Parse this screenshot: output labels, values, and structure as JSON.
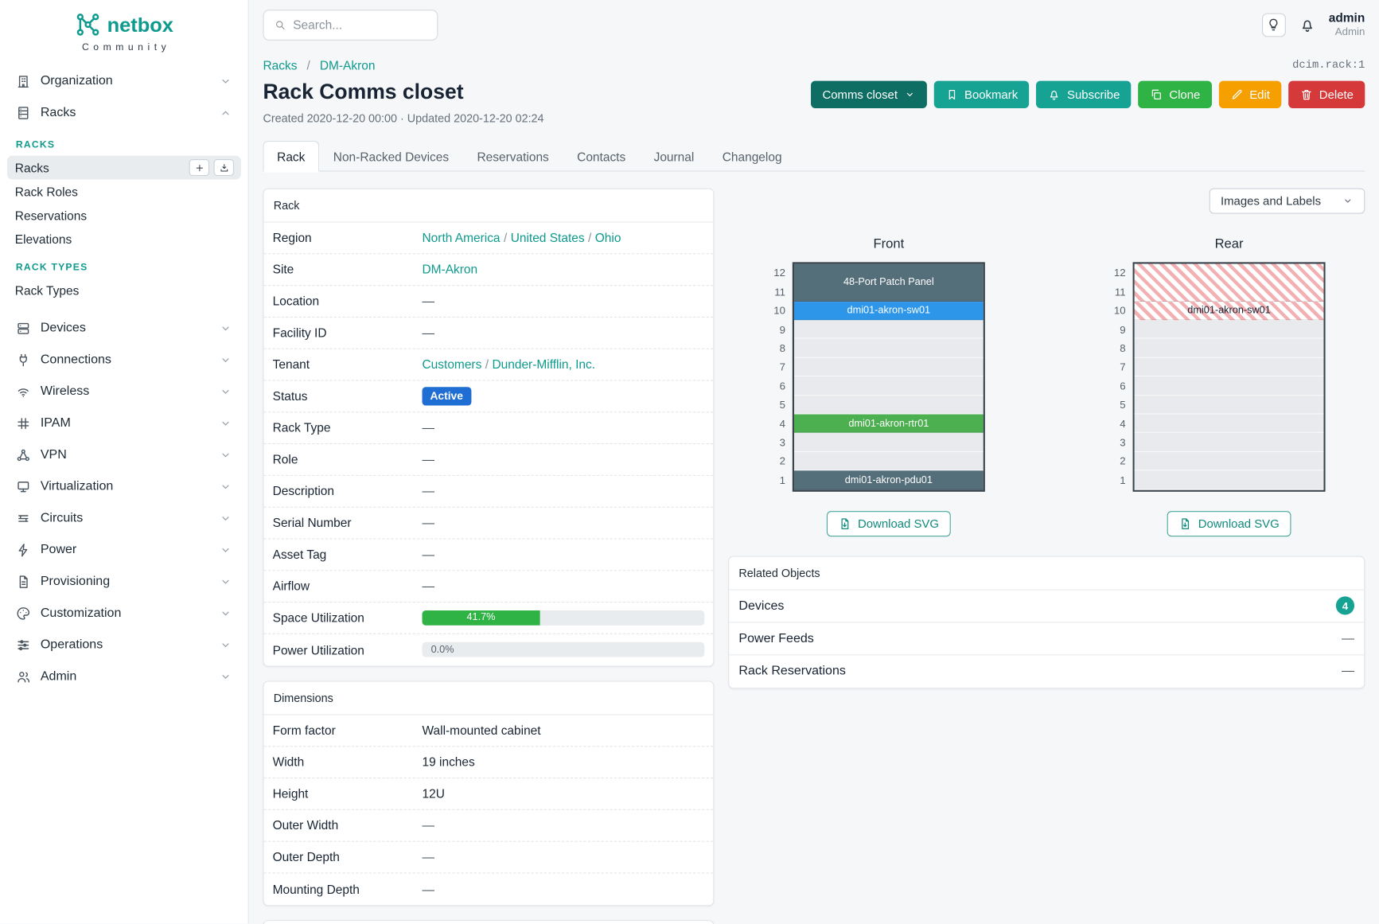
{
  "brand": {
    "name": "netbox",
    "subtitle": "Community"
  },
  "topbar": {
    "search_placeholder": "Search...",
    "icons": [
      "lightbulb",
      "bell"
    ],
    "user": {
      "name": "admin",
      "role": "Admin"
    }
  },
  "sidebar": {
    "items": [
      {
        "label": "Organization",
        "icon": "building",
        "chevron": "down"
      },
      {
        "label": "Racks",
        "icon": "rack",
        "chevron": "up",
        "expanded": true
      },
      {
        "label": "Devices",
        "icon": "devices",
        "chevron": "down"
      },
      {
        "label": "Connections",
        "icon": "connections",
        "chevron": "down"
      },
      {
        "label": "Wireless",
        "icon": "wireless",
        "chevron": "down"
      },
      {
        "label": "IPAM",
        "icon": "ipam",
        "chevron": "down"
      },
      {
        "label": "VPN",
        "icon": "vpn",
        "chevron": "down"
      },
      {
        "label": "Virtualization",
        "icon": "virtualization",
        "chevron": "down"
      },
      {
        "label": "Circuits",
        "icon": "circuits",
        "chevron": "down"
      },
      {
        "label": "Power",
        "icon": "power",
        "chevron": "down"
      },
      {
        "label": "Provisioning",
        "icon": "provisioning",
        "chevron": "down"
      },
      {
        "label": "Customization",
        "icon": "customization",
        "chevron": "down"
      },
      {
        "label": "Operations",
        "icon": "operations",
        "chevron": "down"
      },
      {
        "label": "Admin",
        "icon": "admin",
        "chevron": "down"
      }
    ],
    "racks_groups": [
      {
        "header": "RACKS",
        "links": [
          {
            "label": "Racks",
            "active": true,
            "buttons": [
              "plus",
              "import"
            ]
          },
          {
            "label": "Rack Roles"
          },
          {
            "label": "Reservations"
          },
          {
            "label": "Elevations"
          }
        ]
      },
      {
        "header": "RACK TYPES",
        "links": [
          {
            "label": "Rack Types"
          }
        ]
      }
    ]
  },
  "breadcrumb": {
    "items": [
      "Racks",
      "DM-Akron"
    ]
  },
  "page": {
    "title": "Rack Comms closet",
    "meta": "Created 2020-12-20 00:00 · Updated 2020-12-20 02:24",
    "object_id": "dcim.rack:1"
  },
  "actions": [
    {
      "label": "Comms closet",
      "color": "#0f6e63",
      "caret": true
    },
    {
      "label": "Bookmark",
      "color": "#17a394",
      "icon": "bookmark"
    },
    {
      "label": "Subscribe",
      "color": "#17a394",
      "icon": "bell"
    },
    {
      "label": "Clone",
      "color": "#2fb344",
      "icon": "copy"
    },
    {
      "label": "Edit",
      "color": "#f59f00",
      "icon": "pencil"
    },
    {
      "label": "Delete",
      "color": "#d63939",
      "icon": "trash"
    }
  ],
  "tabs": [
    {
      "label": "Rack",
      "active": true
    },
    {
      "label": "Non-Racked Devices"
    },
    {
      "label": "Reservations"
    },
    {
      "label": "Contacts"
    },
    {
      "label": "Journal"
    },
    {
      "label": "Changelog"
    }
  ],
  "rack_card": {
    "title": "Rack",
    "rows": [
      {
        "label": "Region",
        "type": "links",
        "parts": [
          "North America",
          "United States",
          "Ohio"
        ]
      },
      {
        "label": "Site",
        "type": "links",
        "parts": [
          "DM-Akron"
        ]
      },
      {
        "label": "Location",
        "value": "—"
      },
      {
        "label": "Facility ID",
        "value": "—"
      },
      {
        "label": "Tenant",
        "type": "links",
        "parts": [
          "Customers",
          "Dunder-Mifflin, Inc."
        ]
      },
      {
        "label": "Status",
        "type": "badge",
        "value": "Active",
        "color": "#1f6ed4"
      },
      {
        "label": "Rack Type",
        "value": "—"
      },
      {
        "label": "Role",
        "value": "—"
      },
      {
        "label": "Description",
        "value": "—"
      },
      {
        "label": "Serial Number",
        "value": "—"
      },
      {
        "label": "Asset Tag",
        "value": "—"
      },
      {
        "label": "Airflow",
        "value": "—"
      },
      {
        "label": "Space Utilization",
        "type": "progress",
        "percent": 41.7,
        "text": "41.7%"
      },
      {
        "label": "Power Utilization",
        "type": "progress",
        "percent": 0,
        "text": "0.0%"
      }
    ]
  },
  "dimensions_card": {
    "title": "Dimensions",
    "rows": [
      {
        "label": "Form factor",
        "value": "Wall-mounted cabinet"
      },
      {
        "label": "Width",
        "value": "19 inches"
      },
      {
        "label": "Height",
        "value": "12U"
      },
      {
        "label": "Outer Width",
        "value": "—"
      },
      {
        "label": "Outer Depth",
        "value": "—"
      },
      {
        "label": "Mounting Depth",
        "value": "—"
      }
    ]
  },
  "elevations": {
    "toggle_label": "Images and Labels",
    "download_label": "Download SVG",
    "unit_count": 12,
    "colors": {
      "dark": "#546e7a",
      "blue": "#2d96e8",
      "green": "#4caf50"
    },
    "views": [
      {
        "title": "Front",
        "blocks": [
          {
            "type": "device",
            "style": "dark",
            "span": 2,
            "label": "48-Port Patch Panel"
          },
          {
            "type": "device",
            "style": "blue",
            "span": 1,
            "label": "dmi01-akron-sw01"
          },
          {
            "type": "empty",
            "span": 5
          },
          {
            "type": "device",
            "style": "green",
            "span": 1,
            "label": "dmi01-akron-rtr01"
          },
          {
            "type": "empty",
            "span": 2
          },
          {
            "type": "device",
            "style": "dark",
            "span": 1,
            "label": "dmi01-akron-pdu01"
          }
        ]
      },
      {
        "title": "Rear",
        "blocks": [
          {
            "type": "hatched",
            "span": 2,
            "label": ""
          },
          {
            "type": "hatched",
            "span": 1,
            "label": "dmi01-akron-sw01"
          },
          {
            "type": "empty",
            "span": 9
          }
        ]
      }
    ]
  },
  "related": {
    "title": "Related Objects",
    "rows": [
      {
        "label": "Devices",
        "badge": "4"
      },
      {
        "label": "Power Feeds",
        "value": "—"
      },
      {
        "label": "Rack Reservations",
        "value": "—"
      }
    ]
  }
}
